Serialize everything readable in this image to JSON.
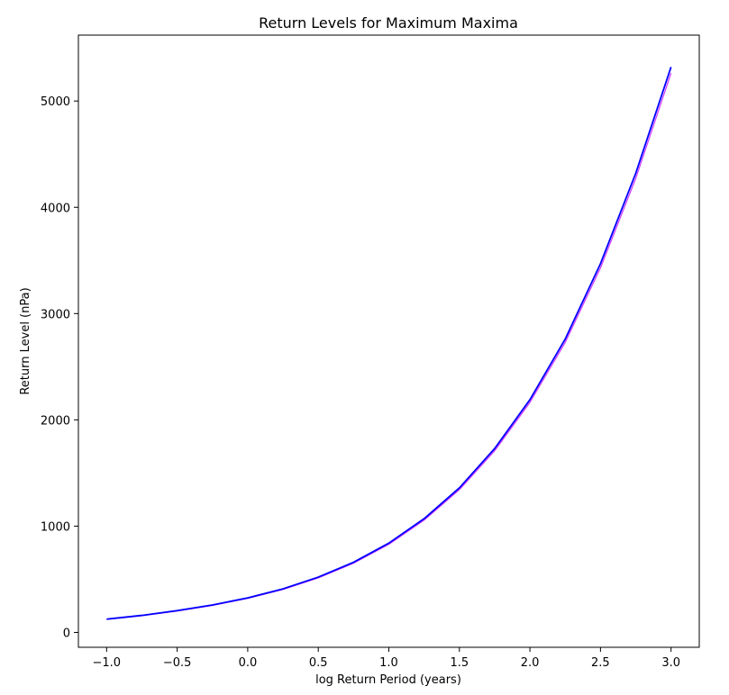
{
  "chart_data": {
    "type": "line",
    "title": "Return Levels for Maximum Maxima",
    "xlabel": "log Return Period (years)",
    "ylabel": "Return Level (nPa)",
    "xlim": [
      -1.2,
      3.2
    ],
    "ylim": [
      -140,
      5620
    ],
    "xticks": [
      -1.0,
      -0.5,
      0.0,
      0.5,
      1.0,
      1.5,
      2.0,
      2.5,
      3.0
    ],
    "xtick_labels": [
      "−1.0",
      "−0.5",
      "0.0",
      "0.5",
      "1.0",
      "1.5",
      "2.0",
      "2.5",
      "3.0"
    ],
    "yticks": [
      0,
      1000,
      2000,
      3000,
      4000,
      5000
    ],
    "ytick_labels": [
      "0",
      "1000",
      "2000",
      "3000",
      "4000",
      "5000"
    ],
    "grid": false,
    "series": [
      {
        "color": "#0000ff",
        "x": [
          -1.0,
          -0.75,
          -0.5,
          -0.25,
          0.0,
          0.25,
          0.5,
          0.75,
          1.0,
          1.25,
          1.5,
          1.75,
          2.0,
          2.25,
          2.5,
          2.75,
          3.0
        ],
        "y": [
          125,
          160,
          205,
          258,
          325,
          410,
          520,
          660,
          840,
          1070,
          1360,
          1730,
          2190,
          2760,
          3470,
          4320,
          5320
        ]
      },
      {
        "color": "#cc33ff",
        "x": [
          -1.0,
          -0.75,
          -0.5,
          -0.25,
          0.0,
          0.25,
          0.5,
          0.75,
          1.0,
          1.25,
          1.5,
          1.75,
          2.0,
          2.25,
          2.5,
          2.75,
          3.0
        ],
        "y": [
          122,
          157,
          201,
          254,
          320,
          404,
          513,
          651,
          829,
          1056,
          1343,
          1709,
          2164,
          2728,
          3430,
          4272,
          5262
        ]
      }
    ]
  }
}
